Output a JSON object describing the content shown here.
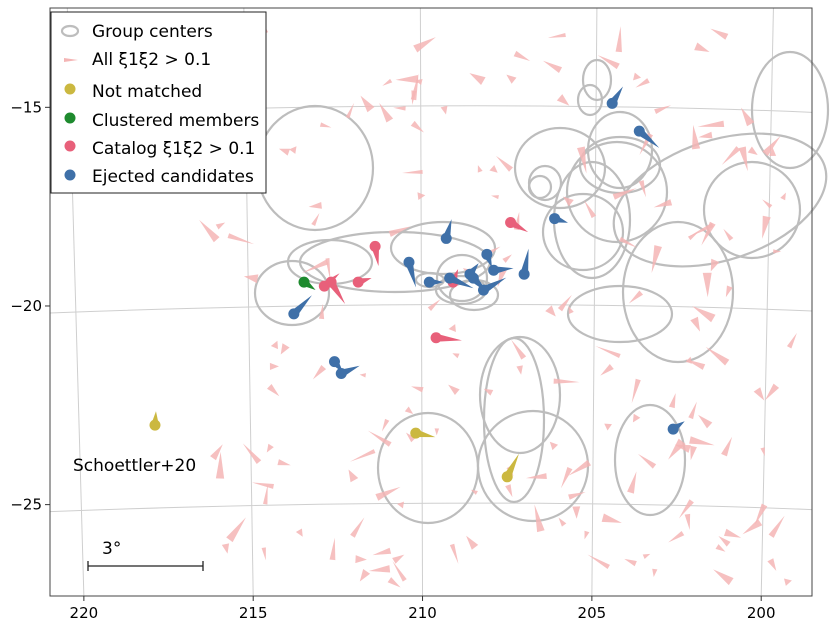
{
  "chart_data": {
    "type": "scatter",
    "title": "",
    "xlabel": "",
    "ylabel": "",
    "xlim": [
      221.0,
      198.5
    ],
    "ylim": [
      -27.3,
      -12.5
    ],
    "x_ticks": [
      220,
      215,
      210,
      205,
      200
    ],
    "y_ticks": [
      -15,
      -20,
      -25
    ],
    "x_tick_labels": [
      "220",
      "215",
      "210",
      "205",
      "200"
    ],
    "y_tick_labels": [
      "−15",
      "−20",
      "−25"
    ],
    "grid": true,
    "legend_position": "top-left",
    "legend": [
      {
        "label": "Group centers",
        "marker": "ring",
        "color": "#bdbdbd"
      },
      {
        "label": "All ξ1ξ2 > 0.1",
        "marker": "small-arrow",
        "color": "#f4b5b5"
      },
      {
        "label": "Not matched",
        "marker": "dot",
        "color": "#cbb840"
      },
      {
        "label": "Clustered members",
        "marker": "dot",
        "color": "#1e8a2e"
      },
      {
        "label": "Catalog ξ1ξ2 > 0.1",
        "marker": "dot",
        "color": "#e8607a"
      },
      {
        "label": "Ejected candidates",
        "marker": "dot",
        "color": "#3f70a8"
      }
    ],
    "annotation": "Schoettler+20",
    "scale_bar_label": "3°",
    "scale_bar_length_deg": 3,
    "series": [
      {
        "name": "Not matched",
        "color": "#cbb840",
        "points": [
          [
            217.9,
            -23.0
          ],
          [
            210.2,
            -23.2
          ],
          [
            207.5,
            -24.3
          ]
        ]
      },
      {
        "name": "Clustered members",
        "color": "#1e8a2e",
        "points": [
          [
            213.5,
            -19.4
          ]
        ]
      },
      {
        "name": "Catalog ξ1ξ2 > 0.1",
        "color": "#e8607a",
        "points": [
          [
            212.9,
            -19.5
          ],
          [
            212.7,
            -19.4
          ],
          [
            211.9,
            -19.4
          ],
          [
            211.4,
            -18.5
          ],
          [
            209.6,
            -20.8
          ],
          [
            209.1,
            -19.4
          ],
          [
            207.4,
            -17.9
          ]
        ]
      },
      {
        "name": "Ejected candidates",
        "color": "#3f70a8",
        "points": [
          [
            213.8,
            -20.2
          ],
          [
            212.6,
            -21.4
          ],
          [
            212.4,
            -21.7
          ],
          [
            210.4,
            -18.9
          ],
          [
            209.8,
            -19.4
          ],
          [
            209.3,
            -18.3
          ],
          [
            209.2,
            -19.3
          ],
          [
            208.6,
            -19.2
          ],
          [
            208.5,
            -19.3
          ],
          [
            208.2,
            -19.6
          ],
          [
            208.1,
            -18.7
          ],
          [
            207.9,
            -19.1
          ],
          [
            207.0,
            -19.2
          ],
          [
            206.1,
            -17.8
          ],
          [
            204.4,
            -14.9
          ],
          [
            203.6,
            -15.6
          ],
          [
            202.6,
            -23.1
          ]
        ]
      }
    ]
  }
}
